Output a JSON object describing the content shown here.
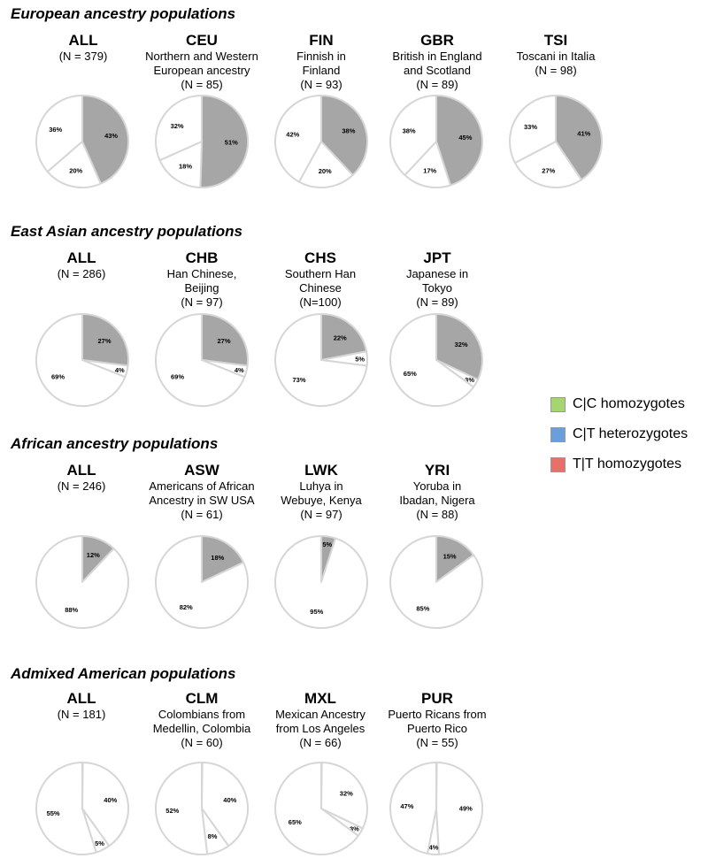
{
  "colors": {
    "cc": "#a5d56f",
    "ct": "#6a9fdc",
    "tt": "#e8706b",
    "pie_gray": "#a6a6a6",
    "pie_white": "#ffffff",
    "pie_edge": "#d6d6d6"
  },
  "legend": [
    {
      "label": "C|C homozygotes",
      "color": "#a5d56f"
    },
    {
      "label": "C|T heterozygotes",
      "color": "#6a9fdc"
    },
    {
      "label": "T|T homozygotes",
      "color": "#e8706b"
    }
  ],
  "chart_data": [
    {
      "type": "pie",
      "title": "European ancestry populations",
      "panels": [
        {
          "code": "ALL",
          "desc": "",
          "n": "(N = 379)",
          "values": [
            43,
            20,
            36
          ],
          "labels": [
            "43%",
            "20%",
            "36%"
          ],
          "gray": [
            true,
            false,
            false
          ]
        },
        {
          "code": "CEU",
          "desc": "Northern and Western\nEuropean ancestry",
          "n": "(N = 85)",
          "values": [
            51,
            18,
            32
          ],
          "labels": [
            "51%",
            "18%",
            "32%"
          ],
          "gray": [
            true,
            false,
            false
          ]
        },
        {
          "code": "FIN",
          "desc": "Finnish in\nFinland",
          "n": "(N = 93)",
          "values": [
            38,
            20,
            42
          ],
          "labels": [
            "38%",
            "20%",
            "42%"
          ],
          "gray": [
            true,
            false,
            false
          ]
        },
        {
          "code": "GBR",
          "desc": "British in England\nand Scotland",
          "n": "(N = 89)",
          "values": [
            45,
            17,
            38
          ],
          "labels": [
            "45%",
            "17%",
            "38%"
          ],
          "gray": [
            true,
            false,
            false
          ]
        },
        {
          "code": "TSI",
          "desc": "Toscani in Italia",
          "n": "(N = 98)",
          "values": [
            41,
            27,
            33
          ],
          "labels": [
            "41%",
            "27%",
            "33%"
          ],
          "gray": [
            true,
            false,
            false
          ]
        }
      ]
    },
    {
      "type": "pie",
      "title": "East Asian ancestry populations",
      "panels": [
        {
          "code": "ALL",
          "desc": "",
          "n": "(N = 286)",
          "values": [
            27,
            4,
            69
          ],
          "labels": [
            "27%",
            "4%",
            "69%"
          ],
          "gray": [
            true,
            false,
            false
          ]
        },
        {
          "code": "CHB",
          "desc": "Han Chinese,\nBeijing",
          "n": "(N = 97)",
          "values": [
            27,
            4,
            69
          ],
          "labels": [
            "27%",
            "4%",
            "69%"
          ],
          "gray": [
            true,
            false,
            false
          ]
        },
        {
          "code": "CHS",
          "desc": "Southern Han\nChinese",
          "n": "(N=100)",
          "values": [
            22,
            5,
            73
          ],
          "labels": [
            "22%",
            "5%",
            "73%"
          ],
          "gray": [
            true,
            false,
            false
          ]
        },
        {
          "code": "JPT",
          "desc": "Japanese in\nTokyo",
          "n": "(N = 89)",
          "values": [
            32,
            3,
            65
          ],
          "labels": [
            "32%",
            "3%",
            "65%"
          ],
          "gray": [
            true,
            false,
            false
          ]
        }
      ]
    },
    {
      "type": "pie",
      "title": "African ancestry populations",
      "panels": [
        {
          "code": "ALL",
          "desc": "",
          "n": "(N = 246)",
          "values": [
            12,
            88
          ],
          "labels": [
            "12%",
            "88%"
          ],
          "gray": [
            true,
            false
          ]
        },
        {
          "code": "ASW",
          "desc": "Americans of African\nAncestry in SW USA",
          "n": "(N = 61)",
          "values": [
            18,
            82
          ],
          "labels": [
            "18%",
            "82%"
          ],
          "gray": [
            true,
            false
          ]
        },
        {
          "code": "LWK",
          "desc": "Luhya in\nWebuye, Kenya",
          "n": "(N = 97)",
          "values": [
            5,
            95
          ],
          "labels": [
            "5%",
            "95%"
          ],
          "gray": [
            true,
            false
          ]
        },
        {
          "code": "YRI",
          "desc": "Yoruba in\nIbadan, Nigera",
          "n": "(N = 88)",
          "values": [
            15,
            85
          ],
          "labels": [
            "15%",
            "85%"
          ],
          "gray": [
            true,
            false
          ]
        }
      ]
    },
    {
      "type": "pie",
      "title": "Admixed American populations",
      "panels": [
        {
          "code": "ALL",
          "desc": "",
          "n": "(N = 181)",
          "values": [
            0.2,
            40,
            5,
            55
          ],
          "labels": [
            "",
            "40%",
            "5%",
            "55%"
          ],
          "gray": [
            true,
            false,
            false,
            false
          ]
        },
        {
          "code": "CLM",
          "desc": "Colombians from\nMedellin, Colombia",
          "n": "(N = 60)",
          "values": [
            0.2,
            40,
            8,
            52
          ],
          "labels": [
            "",
            "40%",
            "8%",
            "52%"
          ],
          "gray": [
            true,
            false,
            false,
            false
          ]
        },
        {
          "code": "MXL",
          "desc": "Mexican Ancestry\nfrom Los Angeles",
          "n": "(N = 66)",
          "values": [
            0.2,
            32,
            3,
            65
          ],
          "labels": [
            "",
            "32%",
            "3%",
            "65%"
          ],
          "gray": [
            true,
            false,
            false,
            false
          ]
        },
        {
          "code": "PUR",
          "desc": "Puerto Ricans from\nPuerto Rico",
          "n": "(N = 55)",
          "values": [
            0.2,
            49,
            4,
            47
          ],
          "labels": [
            "",
            "49%",
            "4%",
            "47%"
          ],
          "gray": [
            true,
            false,
            false,
            false
          ]
        }
      ]
    }
  ]
}
